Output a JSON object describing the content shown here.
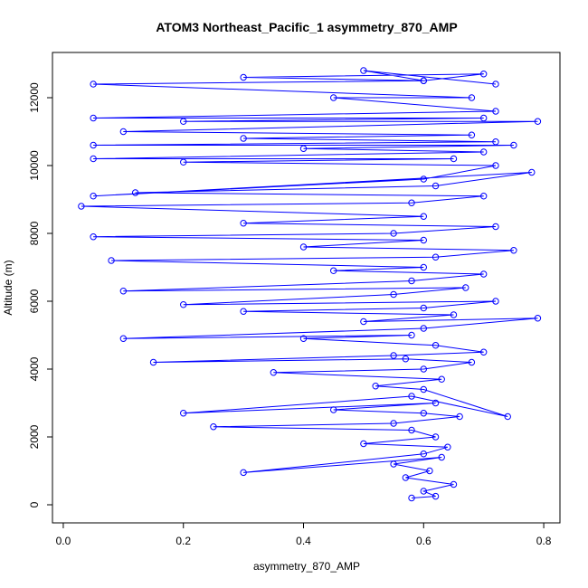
{
  "chart_data": {
    "type": "line",
    "title": "ATOM3 Northeast_Pacific_1 asymmetry_870_AMP",
    "xlabel": "asymmetry_870_AMP",
    "ylabel": "Altitude (m)",
    "color": "#0000ff",
    "markers": true,
    "xlim": [
      -0.018,
      0.827
    ],
    "ylim": [
      -533,
      13333
    ],
    "xticks": [
      {
        "value": 0,
        "label": "0.0"
      },
      0.2,
      0.4,
      0.6,
      0.8
    ],
    "yticks": [
      0,
      2000,
      4000,
      6000,
      8000,
      10000,
      12000
    ],
    "x": [
      0.58,
      0.62,
      0.6,
      0.65,
      0.57,
      0.61,
      0.55,
      0.63,
      0.3,
      0.6,
      0.64,
      0.5,
      0.62,
      0.58,
      0.25,
      0.55,
      0.66,
      0.6,
      0.45,
      0.62,
      0.2,
      0.58,
      0.74,
      0.6,
      0.52,
      0.63,
      0.35,
      0.6,
      0.68,
      0.57,
      0.15,
      0.55,
      0.7,
      0.62,
      0.4,
      0.58,
      0.1,
      0.6,
      0.79,
      0.5,
      0.65,
      0.3,
      0.6,
      0.72,
      0.2,
      0.55,
      0.67,
      0.1,
      0.58,
      0.7,
      0.45,
      0.6,
      0.08,
      0.62,
      0.75,
      0.4,
      0.6,
      0.05,
      0.55,
      0.72,
      0.3,
      0.6,
      0.03,
      0.58,
      0.7,
      0.12,
      0.62,
      0.78,
      0.05,
      0.6,
      0.72,
      0.2,
      0.65,
      0.05,
      0.7,
      0.4,
      0.75,
      0.05,
      0.72,
      0.3,
      0.68,
      0.1,
      0.79,
      0.2,
      0.7,
      0.05,
      0.72,
      0.45,
      0.68,
      0.05,
      0.6,
      0.3,
      0.7,
      0.6,
      0.5,
      0.72
    ],
    "y": [
      200,
      250,
      400,
      600,
      800,
      1000,
      1200,
      1400,
      950,
      1500,
      1700,
      1800,
      2000,
      2200,
      2300,
      2400,
      2600,
      2700,
      2800,
      3000,
      2700,
      3200,
      2600,
      3400,
      3500,
      3700,
      3900,
      4000,
      4200,
      4300,
      4200,
      4400,
      4500,
      4700,
      4900,
      5000,
      4900,
      5200,
      5500,
      5400,
      5600,
      5700,
      5800,
      6000,
      5900,
      6200,
      6400,
      6300,
      6600,
      6800,
      6900,
      7000,
      7200,
      7300,
      7500,
      7600,
      7800,
      7900,
      8000,
      8200,
      8300,
      8500,
      8800,
      8900,
      9100,
      9200,
      9400,
      9800,
      9100,
      9600,
      10000,
      10100,
      10200,
      10200,
      10400,
      10500,
      10600,
      10600,
      10700,
      10800,
      10900,
      11000,
      11300,
      11300,
      11400,
      11400,
      11600,
      12000,
      12000,
      12400,
      12500,
      12600,
      12700,
      12500,
      12800,
      12400
    ]
  }
}
